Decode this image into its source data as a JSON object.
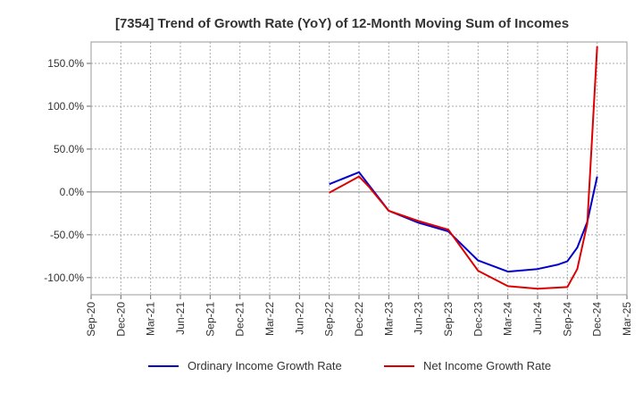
{
  "chart_data": {
    "type": "line",
    "title": "[7354]  Trend of Growth Rate (YoY) of 12-Month Moving Sum of Incomes",
    "xlabel": "",
    "ylabel": "",
    "x_ticks": [
      "Sep-20",
      "Dec-20",
      "Mar-21",
      "Jun-21",
      "Sep-21",
      "Dec-21",
      "Mar-22",
      "Jun-22",
      "Sep-22",
      "Dec-22",
      "Mar-23",
      "Jun-23",
      "Sep-23",
      "Dec-23",
      "Mar-24",
      "Jun-24",
      "Sep-24",
      "Dec-24",
      "Mar-25"
    ],
    "y_ticks": [
      150,
      100,
      50,
      0,
      -50,
      -100
    ],
    "y_tick_labels": [
      "150.0%",
      "100.0%",
      "50.0%",
      "0.0%",
      "-50.0%",
      "-100.0%"
    ],
    "ylim": [
      -120,
      175
    ],
    "grid": true,
    "legend_position": "bottom",
    "series": [
      {
        "name": "Ordinary Income Growth Rate",
        "color": "#0000cc",
        "x": [
          "Sep-22",
          "Dec-22",
          "Jan-23",
          "Mar-23",
          "Jun-23",
          "Sep-23",
          "Dec-23",
          "Mar-24",
          "Jun-24",
          "Aug-24",
          "Sep-24",
          "Oct-24",
          "Nov-24",
          "Dec-24"
        ],
        "values": [
          9,
          23,
          8,
          -22,
          -36,
          -46,
          -80,
          -93,
          -90,
          -85,
          -81,
          -65,
          -35,
          18
        ]
      },
      {
        "name": "Net Income Growth Rate",
        "color": "#dd0000",
        "x": [
          "Sep-22",
          "Dec-22",
          "Jan-23",
          "Mar-23",
          "Jun-23",
          "Sep-23",
          "Dec-23",
          "Mar-24",
          "Jun-24",
          "Sep-24",
          "Oct-24",
          "Nov-24",
          "Dec-24"
        ],
        "values": [
          -1,
          18,
          6,
          -22,
          -34,
          -44,
          -92,
          -110,
          -113,
          -111,
          -90,
          -37,
          170
        ]
      }
    ]
  }
}
